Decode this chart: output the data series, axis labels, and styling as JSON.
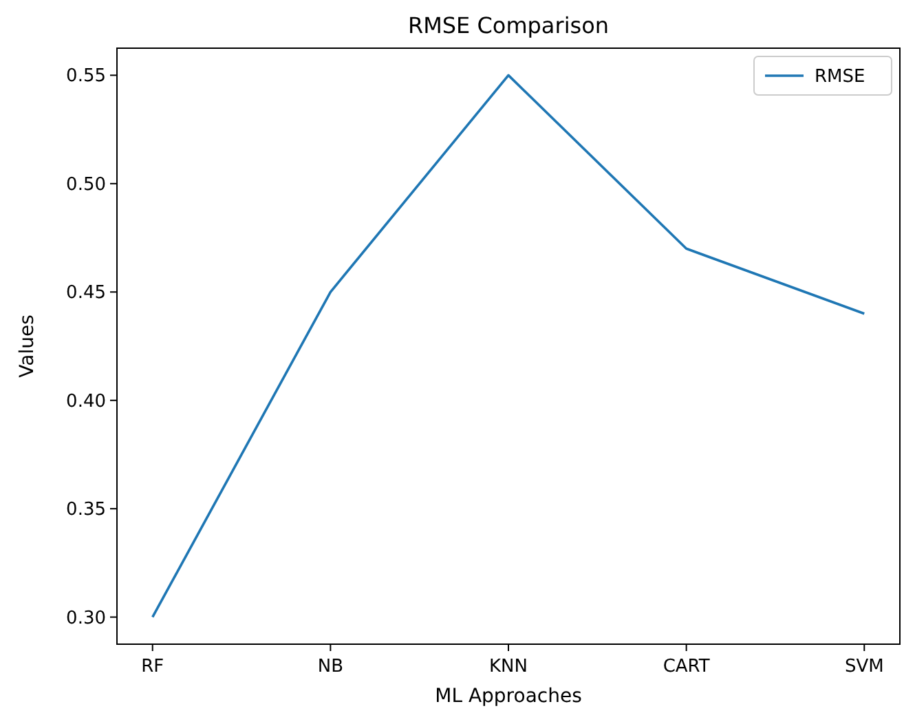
{
  "chart_data": {
    "type": "line",
    "title": "RMSE Comparison",
    "xlabel": "ML Approaches",
    "ylabel": "Values",
    "categories": [
      "RF",
      "NB",
      "KNN",
      "CART",
      "SVM"
    ],
    "series": [
      {
        "name": "RMSE",
        "color": "#1f77b4",
        "values": [
          0.3,
          0.45,
          0.55,
          0.47,
          0.44
        ]
      }
    ],
    "ylim": [
      0.2875,
      0.5625
    ],
    "yticks": [
      {
        "value": 0.3,
        "label": "0.30"
      },
      {
        "value": 0.35,
        "label": "0.35"
      },
      {
        "value": 0.4,
        "label": "0.40"
      },
      {
        "value": 0.45,
        "label": "0.45"
      },
      {
        "value": 0.5,
        "label": "0.50"
      },
      {
        "value": 0.55,
        "label": "0.55"
      }
    ],
    "legend": "top right"
  }
}
